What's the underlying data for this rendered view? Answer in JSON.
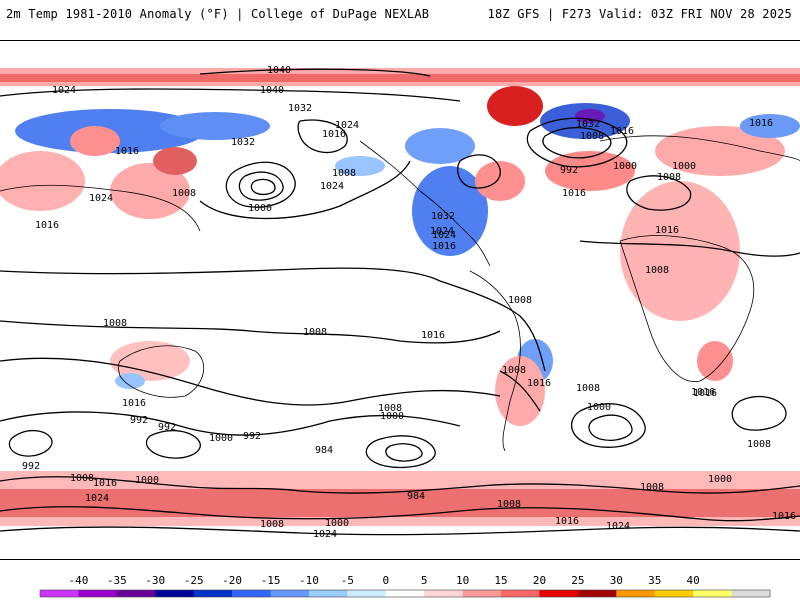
{
  "header": {
    "left_title": "2m Temp 1981-2010 Anomaly (°F) | College of DuPage NEXLAB",
    "right_title": "18Z GFS | F273 Valid: 03Z FRI NOV 28 2025"
  },
  "colorbar": {
    "ticks": [
      "-40",
      "-35",
      "-30",
      "-25",
      "-20",
      "-15",
      "-10",
      "-5",
      "0",
      "5",
      "10",
      "15",
      "20",
      "25",
      "30",
      "35",
      "40"
    ],
    "colors": [
      "#cc33ff",
      "#9900cc",
      "#660099",
      "#000099",
      "#0033cc",
      "#3366ff",
      "#6699ff",
      "#99ccff",
      "#ccecff",
      "#ffffff",
      "#ffd6d6",
      "#ff9999",
      "#ff6666",
      "#e60000",
      "#a30000",
      "#ff9900",
      "#ffcc00",
      "#ffff66",
      "#dddddd"
    ]
  },
  "map": {
    "contour_labels": [
      "1040",
      "1040",
      "1032",
      "1032",
      "1024",
      "1024",
      "1016",
      "1016",
      "1008",
      "1008",
      "1000",
      "992",
      "984",
      "984",
      "1024",
      "1024",
      "1032",
      "1032",
      "1016",
      "1008",
      "1000",
      "992",
      "1016",
      "1024",
      "1008",
      "1000",
      "1016",
      "1008",
      "1008",
      "1016",
      "1008",
      "1000",
      "992",
      "992",
      "1008",
      "1016",
      "1000",
      "1008",
      "1016",
      "1024",
      "1008",
      "1000",
      "1024",
      "1016",
      "1016",
      "1008",
      "1008",
      "1016",
      "1000",
      "1016",
      "1008",
      "1016",
      "1000",
      "1024",
      "992",
      "1008",
      "1024",
      "1016",
      "1008",
      "1000",
      "1008",
      "1016",
      "1016"
    ]
  }
}
